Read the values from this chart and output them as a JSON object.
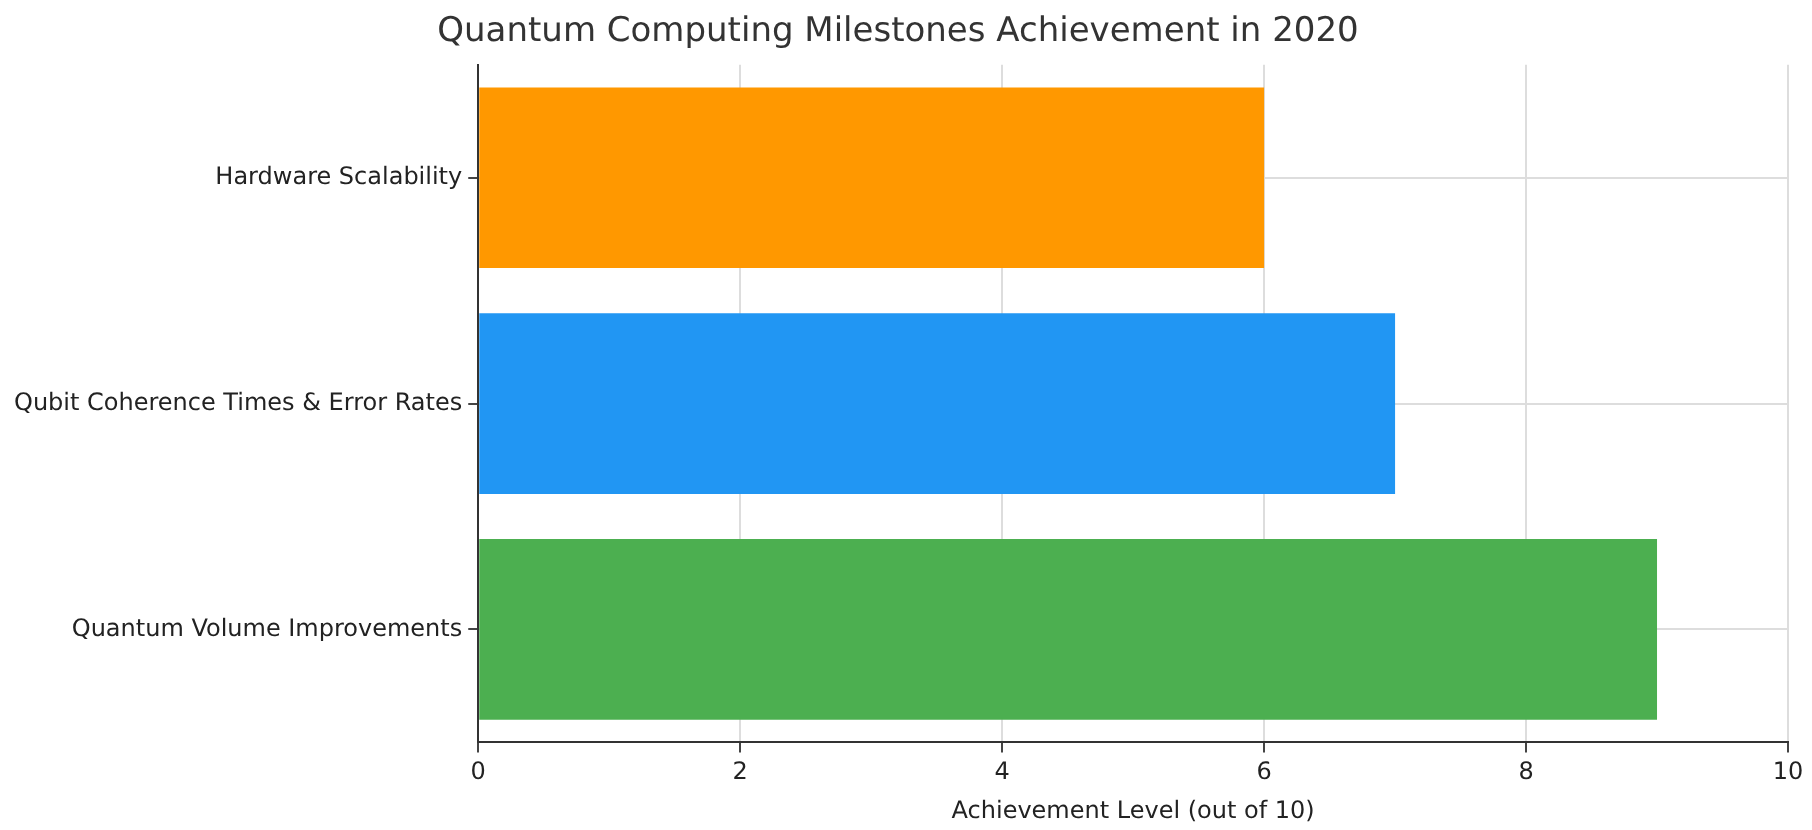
{
  "chart_data": {
    "type": "bar",
    "orientation": "horizontal",
    "title": "Quantum Computing Milestones Achievement in 2020",
    "xlabel": "Achievement Level (out of 10)",
    "categories": [
      "Hardware Scalability",
      "Qubit Coherence Times & Error Rates",
      "Quantum Volume Improvements"
    ],
    "values": [
      6,
      7,
      9
    ],
    "colors": [
      "#ff9800",
      "#2196f3",
      "#4caf50"
    ],
    "xlim": [
      0,
      10
    ],
    "xticks": [
      0,
      2,
      4,
      6,
      8,
      10
    ],
    "grid": true,
    "legend": false
  }
}
